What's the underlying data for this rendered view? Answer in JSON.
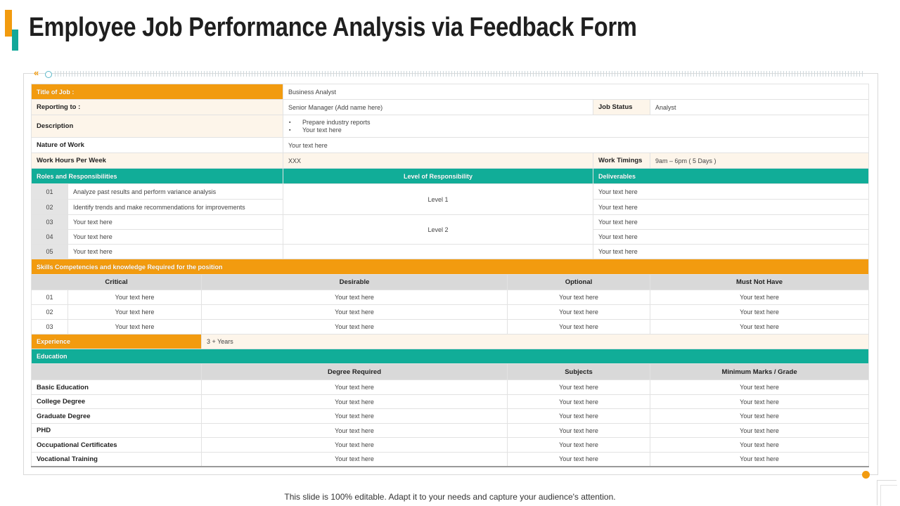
{
  "title": "Employee Job Performance Analysis via Feedback Form",
  "colors": {
    "orange": "#f29b0f",
    "teal": "#11ad98",
    "grey": "#d9d9d9"
  },
  "job": {
    "title_label": "Title of Job :",
    "title_value": "Business Analyst",
    "reporting_label": "Reporting to :",
    "reporting_value": "Senior Manager  (Add name here)",
    "status_label": "Job Status",
    "status_value": "Analyst",
    "description_label": "Description",
    "description_items": [
      "Prepare industry reports",
      "Your text here"
    ],
    "nature_label": "Nature of Work",
    "nature_value": "Your text here",
    "hours_label": "Work Hours Per Week",
    "hours_value": "XXX",
    "timings_label": "Work Timings",
    "timings_value": "9am – 6pm ( 5 Days )"
  },
  "roles": {
    "header_roles": "Roles and Responsibilities",
    "header_level": "Level of Responsibility",
    "header_deliverables": "Deliverables",
    "rows": [
      {
        "num": "01",
        "text": "Analyze past results and perform variance analysis",
        "deliverable": "Your text here"
      },
      {
        "num": "02",
        "text": "Identify trends and make recommendations for improvements",
        "deliverable": "Your text here"
      },
      {
        "num": "03",
        "text": "Your text here",
        "deliverable": "Your text here"
      },
      {
        "num": "04",
        "text": "Your text here",
        "deliverable": "Your text here"
      },
      {
        "num": "05",
        "text": "Your text here",
        "deliverable": "Your text here"
      }
    ],
    "level_1": "Level 1",
    "level_2": "Level 2"
  },
  "skills": {
    "header": "Skills Competencies and knowledge Required for the position",
    "columns": [
      "Critical",
      "Desirable",
      "Optional",
      "Must Not Have"
    ],
    "rows": [
      {
        "num": "01",
        "cells": [
          "Your text here",
          "Your text here",
          "Your text here",
          "Your text here"
        ]
      },
      {
        "num": "02",
        "cells": [
          "Your text here",
          "Your text here",
          "Your text here",
          "Your text here"
        ]
      },
      {
        "num": "03",
        "cells": [
          "Your text here",
          "Your text here",
          "Your text here",
          "Your text here"
        ]
      }
    ]
  },
  "experience": {
    "label": "Experience",
    "value": "3 + Years"
  },
  "education": {
    "header": "Education",
    "columns": [
      "Degree Required",
      "Subjects",
      "Minimum Marks / Grade"
    ],
    "rows": [
      {
        "label": "Basic Education",
        "cells": [
          "Your text here",
          "Your text here",
          "Your text here"
        ]
      },
      {
        "label": "College Degree",
        "cells": [
          "Your text here",
          "Your text here",
          "Your text here"
        ]
      },
      {
        "label": "Graduate Degree",
        "cells": [
          "Your text here",
          "Your text here",
          "Your text here"
        ]
      },
      {
        "label": "PHD",
        "cells": [
          "Your text here",
          "Your text here",
          "Your text here"
        ]
      },
      {
        "label": "Occupational Certificates",
        "cells": [
          "Your text here",
          "Your text here",
          "Your text here"
        ]
      },
      {
        "label": "Vocational Training",
        "cells": [
          "Your text here",
          "Your text here",
          "Your text here"
        ]
      }
    ]
  },
  "footer": "This slide is 100% editable. Adapt it to your needs and capture your audience's attention."
}
